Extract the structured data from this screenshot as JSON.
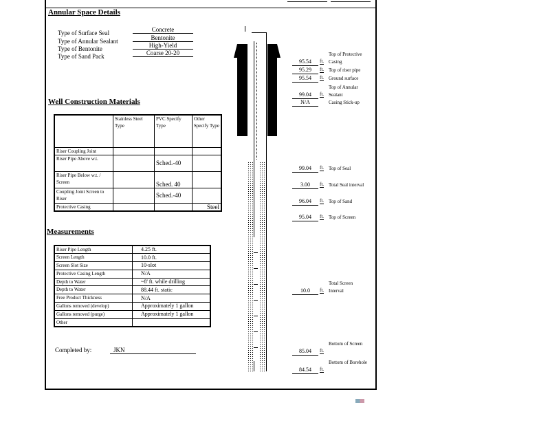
{
  "annular": {
    "title": "Annular Space Details",
    "rows": [
      {
        "label": "Type of Surface Seal",
        "value": "Concrete"
      },
      {
        "label": "Type of Annular Sealant",
        "value": "Bentonite"
      },
      {
        "label": "Type of Bentonite",
        "value": "High-Yield"
      },
      {
        "label": "Type of Sand Pack",
        "value": "Coarse 20-20"
      }
    ]
  },
  "materials": {
    "title": "Well Construction Materials",
    "headers": [
      "Stainless Steel Type",
      "PVC Specify Type",
      "Other Specify Type"
    ],
    "rows": [
      {
        "label": "Riser Coupling Joint",
        "ss": "",
        "pvc": "",
        "other": ""
      },
      {
        "label": "Riser Pipe Above w.t.",
        "ss": "",
        "pvc": "Sched.-40",
        "other": ""
      },
      {
        "label": "Riser Pipe Below w.t. / Screen",
        "ss": "",
        "pvc": "Sched. 40",
        "other": ""
      },
      {
        "label": "Coupling Joint Screen to Riser",
        "ss": "",
        "pvc": "Sched.-40",
        "other": ""
      },
      {
        "label": "Protective Casing",
        "ss": "",
        "pvc": "",
        "other": "Steel"
      }
    ]
  },
  "measurements": {
    "title": "Measurements",
    "rows": [
      {
        "label": "Riser Pipe Length",
        "value": "4.25     ft."
      },
      {
        "label": "Screen Length",
        "value": "10.0     ft."
      },
      {
        "label": "Screen Slot Size",
        "value": "10-slot"
      },
      {
        "label": "Protective Casing Length",
        "value": "N/A"
      },
      {
        "label": "Depth to Water",
        "value": "~8'     ft. while drilling"
      },
      {
        "label": "Depth to Water",
        "value": "88.44     ft. static"
      },
      {
        "label": "Free Product Thickness",
        "value": "N/A"
      },
      {
        "label": "Gallons removed (develop)",
        "value": "Approximately 1 gallon"
      },
      {
        "label": "Gallons removed (purge)",
        "value": "Approximately 1 gallon"
      },
      {
        "label": "Other",
        "value": ""
      }
    ]
  },
  "completed": {
    "label": "Completed by:",
    "value": "JKN"
  },
  "diagram": {
    "unit": "ft.",
    "elevations": [
      {
        "value": "95.54",
        "label": "Top of Protective Casing"
      },
      {
        "value": "95.29",
        "label": "Top of riser pipe"
      },
      {
        "value": "95.54",
        "label": "Ground surface"
      },
      {
        "value": "99.04",
        "label": "Top of Annular Sealant"
      },
      {
        "value": "N/A",
        "label": "Casing Stick-up"
      },
      {
        "value": "99.04",
        "label": "Top of Seal"
      },
      {
        "value": "3.00",
        "label": "Total Seal interval"
      },
      {
        "value": "96.04",
        "label": "Top of Sand"
      },
      {
        "value": "95.04",
        "label": "Top of Screen"
      },
      {
        "value": "10.0",
        "label": "Total Screen Interval"
      },
      {
        "value": "85.04",
        "label": "Bottom of Screen"
      },
      {
        "value": "84.54",
        "label": "Bottom of Borehole"
      }
    ]
  }
}
